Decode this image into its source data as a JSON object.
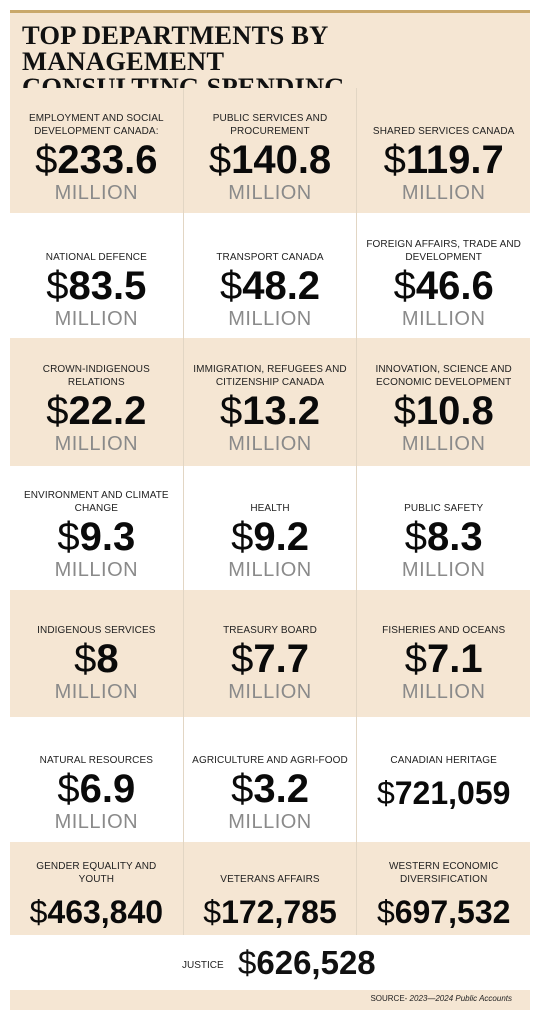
{
  "title_line1": "TOP DEPARTMENTS BY MANAGEMENT",
  "title_line2": "CONSULTING SPENDING",
  "source_lead": "SOURCE-",
  "source_rest": " 2023—2024 Public Accounts",
  "unit_label": "MILLION",
  "currency_symbol": "$",
  "colors": {
    "band": "#f5e6d3",
    "rule": "#c9a86a",
    "unit": "#8a8a8a"
  },
  "chart_data": {
    "type": "table",
    "title": "TOP DEPARTMENTS BY MANAGEMENT CONSULTING SPENDING",
    "rows": [
      [
        {
          "dept": "EMPLOYMENT AND SOCIAL DEVELOPMENT CANADA:",
          "amount": "233.6",
          "unit": "MILLION",
          "value": 233600000
        },
        {
          "dept": "PUBLIC SERVICES AND PROCUREMENT",
          "amount": "140.8",
          "unit": "MILLION",
          "value": 140800000
        },
        {
          "dept": "SHARED SERVICES CANADA",
          "amount": "119.7",
          "unit": "MILLION",
          "value": 119700000
        }
      ],
      [
        {
          "dept": "NATIONAL DEFENCE",
          "amount": "83.5",
          "unit": "MILLION",
          "value": 83500000
        },
        {
          "dept": "TRANSPORT CANADA",
          "amount": "48.2",
          "unit": "MILLION",
          "value": 48200000
        },
        {
          "dept": "FOREIGN AFFAIRS, TRADE AND DEVELOPMENT",
          "amount": "46.6",
          "unit": "MILLION",
          "value": 46600000
        }
      ],
      [
        {
          "dept": "CROWN-INDIGENOUS RELATIONS",
          "amount": "22.2",
          "unit": "MILLION",
          "value": 22200000
        },
        {
          "dept": "IMMIGRATION, REFUGEES AND CITIZENSHIP CANADA",
          "amount": "13.2",
          "unit": "MILLION",
          "value": 13200000
        },
        {
          "dept": "INNOVATION, SCIENCE AND ECONOMIC DEVELOPMENT",
          "amount": "10.8",
          "unit": "MILLION",
          "value": 10800000
        }
      ],
      [
        {
          "dept": "ENVIRONMENT AND CLIMATE CHANGE",
          "amount": "9.3",
          "unit": "MILLION",
          "value": 9300000
        },
        {
          "dept": "HEALTH",
          "amount": "9.2",
          "unit": "MILLION",
          "value": 9200000
        },
        {
          "dept": "PUBLIC SAFETY",
          "amount": "8.3",
          "unit": "MILLION",
          "value": 8300000
        }
      ],
      [
        {
          "dept": "INDIGENOUS SERVICES",
          "amount": "8",
          "unit": "MILLION",
          "value": 8000000
        },
        {
          "dept": "TREASURY BOARD",
          "amount": "7.7",
          "unit": "MILLION",
          "value": 7700000
        },
        {
          "dept": "FISHERIES AND OCEANS",
          "amount": "7.1",
          "unit": "MILLION",
          "value": 7100000
        }
      ],
      [
        {
          "dept": "NATURAL RESOURCES",
          "amount": "6.9",
          "unit": "MILLION",
          "value": 6900000
        },
        {
          "dept": "AGRICULTURE AND AGRI-FOOD",
          "amount": "3.2",
          "unit": "MILLION",
          "value": 3200000
        },
        {
          "dept": "CANADIAN HERITAGE",
          "amount": "721,059",
          "unit": "",
          "value": 721059
        }
      ],
      [
        {
          "dept": "GENDER EQUALITY AND YOUTH",
          "amount": "463,840",
          "unit": "",
          "value": 463840
        },
        {
          "dept": "VETERANS AFFAIRS",
          "amount": "172,785",
          "unit": "",
          "value": 172785
        },
        {
          "dept": "WESTERN ECONOMIC DIVERSIFICATION",
          "amount": "697,532",
          "unit": "",
          "value": 697532
        }
      ]
    ],
    "extra": {
      "dept": "JUSTICE",
      "amount": "626,528",
      "unit": "",
      "value": 626528
    }
  }
}
